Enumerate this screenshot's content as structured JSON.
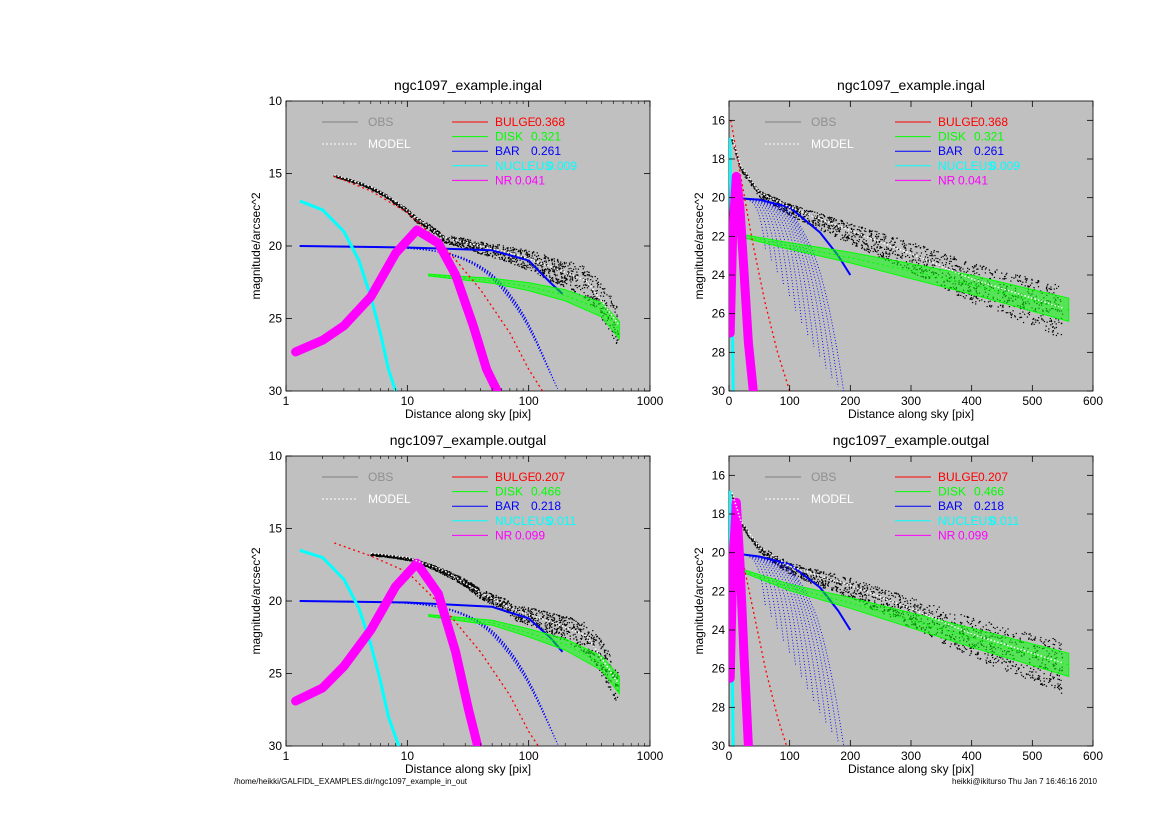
{
  "footer": {
    "path": "/home/heikki/GALFIDL_EXAMPLES.dir/ngc1097_example_in_out",
    "stamp": "heikki@ikiturso  Thu Jan  7 16:46:16 2010"
  },
  "colors": {
    "panel_bg": "#c0c0c0",
    "obs": "#000000",
    "model": "#ffffff",
    "bulge": "#ff0000",
    "disk": "#00ff00",
    "bar": "#0000ff",
    "nucleus": "#00ffff",
    "nr": "#ff00ff"
  },
  "chart_data": [
    {
      "type": "scatter",
      "title": "ngc1097_example.ingal",
      "xlabel": "Distance along sky [pix]",
      "ylabel": "magnitude/arcsec^2",
      "xscale": "log",
      "xlim": [
        1,
        1000
      ],
      "ylim": [
        30,
        10
      ],
      "xticks": [
        "1",
        "10",
        "100",
        "1000"
      ],
      "yticks": [
        "10",
        "15",
        "20",
        "25",
        "30"
      ],
      "legend_left": [
        "OBS",
        "MODEL"
      ],
      "legend_right": [
        {
          "name": "BULGE",
          "value": "0.368",
          "color": "#ff0000"
        },
        {
          "name": "DISK",
          "value": "0.321",
          "color": "#00ff00"
        },
        {
          "name": "BAR",
          "value": "0.261",
          "color": "#0000ff"
        },
        {
          "name": "NUCLEUS",
          "value": "0.009",
          "color": "#00ffff"
        },
        {
          "name": "NR",
          "value": "0.041",
          "color": "#ff00ff"
        }
      ],
      "components": {
        "nucleus": {
          "x": [
            1.3,
            2,
            3,
            4,
            5,
            6,
            7,
            8
          ],
          "y": [
            16.9,
            17.5,
            19.0,
            21.0,
            23.5,
            26.0,
            28.5,
            30.0
          ]
        },
        "nr": {
          "x": [
            1.2,
            2,
            3,
            5,
            8,
            12,
            18,
            25,
            35,
            45,
            55
          ],
          "y": [
            27.3,
            26.5,
            25.5,
            23.5,
            20.5,
            18.9,
            19.8,
            22.0,
            25.5,
            28.5,
            30.0
          ]
        },
        "bulge": {
          "x": [
            2.5,
            5,
            10,
            20,
            40,
            70,
            100,
            130
          ],
          "y": [
            15.2,
            16.2,
            17.7,
            20.0,
            23.0,
            26.0,
            28.5,
            30.0
          ]
        },
        "bar": {
          "x": [
            1.3,
            10,
            50,
            100,
            150,
            190
          ],
          "y": [
            20.0,
            20.1,
            20.3,
            21.0,
            22.5,
            23.3
          ]
        },
        "disk": {
          "x": [
            15,
            50,
            100,
            200,
            400,
            560
          ],
          "y": [
            22.0,
            22.4,
            22.8,
            23.4,
            24.4,
            25.8
          ]
        },
        "obs": {
          "x": [
            2.5,
            5,
            8,
            12,
            20,
            40,
            80,
            150,
            300,
            550
          ],
          "y": [
            15.2,
            16.0,
            17.0,
            18.2,
            19.5,
            20.1,
            20.7,
            21.5,
            22.5,
            25.5
          ]
        }
      }
    },
    {
      "type": "scatter",
      "title": "ngc1097_example.ingal",
      "xlabel": "Distance along sky [pix]",
      "ylabel": "magnitude/arcsec^2",
      "xscale": "linear",
      "xlim": [
        0,
        600
      ],
      "ylim": [
        30,
        15
      ],
      "xticks": [
        "0",
        "100",
        "200",
        "300",
        "400",
        "500",
        "600"
      ],
      "yticks": [
        "16",
        "18",
        "20",
        "22",
        "24",
        "26",
        "28",
        "30"
      ],
      "legend_left": [
        "OBS",
        "MODEL"
      ],
      "legend_right": [
        {
          "name": "BULGE",
          "value": "0.368",
          "color": "#ff0000"
        },
        {
          "name": "DISK",
          "value": "0.321",
          "color": "#00ff00"
        },
        {
          "name": "BAR",
          "value": "0.261",
          "color": "#0000ff"
        },
        {
          "name": "NUCLEUS",
          "value": "0.009",
          "color": "#00ffff"
        },
        {
          "name": "NR",
          "value": "0.041",
          "color": "#ff00ff"
        }
      ],
      "components": {
        "nucleus": {
          "x": [
            1,
            3,
            5,
            7
          ],
          "y": [
            16.9,
            20.0,
            25.0,
            30.0
          ]
        },
        "nr": {
          "x": [
            2,
            6,
            12,
            18,
            25,
            32,
            40
          ],
          "y": [
            27.0,
            22.0,
            18.9,
            20.5,
            24.0,
            27.5,
            30.0
          ]
        },
        "bulge": {
          "x": [
            3,
            20,
            40,
            60,
            80,
            100
          ],
          "y": [
            16.0,
            19.0,
            22.5,
            25.5,
            28.0,
            30.0
          ]
        },
        "bar": {
          "x": [
            0,
            50,
            100,
            150,
            180,
            200
          ],
          "y": [
            20.0,
            20.1,
            20.5,
            21.8,
            23.0,
            24.0
          ]
        },
        "disk": {
          "x": [
            10,
            100,
            200,
            300,
            400,
            560
          ],
          "y": [
            21.9,
            22.5,
            23.1,
            23.8,
            24.5,
            25.8
          ]
        },
        "obs": {
          "x": [
            5,
            20,
            50,
            100,
            200,
            300,
            400,
            550
          ],
          "y": [
            17.0,
            18.5,
            19.8,
            20.6,
            21.8,
            23.0,
            24.3,
            25.8
          ]
        }
      }
    },
    {
      "type": "scatter",
      "title": "ngc1097_example.outgal",
      "xlabel": "Distance along sky [pix]",
      "ylabel": "magnitude/arcsec^2",
      "xscale": "log",
      "xlim": [
        1,
        1000
      ],
      "ylim": [
        30,
        10
      ],
      "xticks": [
        "1",
        "10",
        "100",
        "1000"
      ],
      "yticks": [
        "10",
        "15",
        "20",
        "25",
        "30"
      ],
      "legend_left": [
        "OBS",
        "MODEL"
      ],
      "legend_right": [
        {
          "name": "BULGE",
          "value": "0.207",
          "color": "#ff0000"
        },
        {
          "name": "DISK",
          "value": "0.466",
          "color": "#00ff00"
        },
        {
          "name": "BAR",
          "value": "0.218",
          "color": "#0000ff"
        },
        {
          "name": "NUCLEUS",
          "value": "0.011",
          "color": "#00ffff"
        },
        {
          "name": "NR",
          "value": "0.099",
          "color": "#ff00ff"
        }
      ],
      "components": {
        "nucleus": {
          "x": [
            1.3,
            2,
            3,
            4,
            5,
            6,
            7,
            8.5
          ],
          "y": [
            16.5,
            17.0,
            18.5,
            20.5,
            23.0,
            25.5,
            28.0,
            30.0
          ]
        },
        "nr": {
          "x": [
            1.2,
            2,
            3,
            5,
            8,
            12,
            18,
            25,
            32,
            38
          ],
          "y": [
            26.9,
            26.0,
            24.5,
            22.0,
            19.0,
            17.4,
            19.5,
            23.5,
            27.5,
            30.0
          ]
        },
        "bulge": {
          "x": [
            2.5,
            5,
            10,
            20,
            40,
            70,
            100,
            120
          ],
          "y": [
            16.0,
            16.9,
            18.0,
            20.5,
            23.5,
            26.5,
            29.0,
            30.0
          ]
        },
        "bar": {
          "x": [
            1.3,
            10,
            50,
            100,
            150,
            190
          ],
          "y": [
            20.0,
            20.1,
            20.4,
            21.2,
            22.5,
            23.5
          ]
        },
        "disk": {
          "x": [
            15,
            50,
            100,
            200,
            400,
            560
          ],
          "y": [
            21.0,
            21.5,
            22.2,
            23.0,
            24.3,
            25.8
          ]
        },
        "obs": {
          "x": [
            5,
            10,
            20,
            40,
            80,
            150,
            300,
            550
          ],
          "y": [
            16.8,
            17.1,
            18.0,
            19.5,
            20.8,
            21.5,
            22.5,
            25.8
          ]
        }
      }
    },
    {
      "type": "scatter",
      "title": "ngc1097_example.outgal",
      "xlabel": "Distance along sky [pix]",
      "ylabel": "magnitude/arcsec^2",
      "xscale": "linear",
      "xlim": [
        0,
        600
      ],
      "ylim": [
        30,
        15
      ],
      "xticks": [
        "0",
        "100",
        "200",
        "300",
        "400",
        "500",
        "600"
      ],
      "yticks": [
        "16",
        "18",
        "20",
        "22",
        "24",
        "26",
        "28",
        "30"
      ],
      "legend_left": [
        "OBS",
        "MODEL"
      ],
      "legend_right": [
        {
          "name": "BULGE",
          "value": "0.207",
          "color": "#ff0000"
        },
        {
          "name": "DISK",
          "value": "0.466",
          "color": "#00ff00"
        },
        {
          "name": "BAR",
          "value": "0.218",
          "color": "#0000ff"
        },
        {
          "name": "NUCLEUS",
          "value": "0.011",
          "color": "#00ffff"
        },
        {
          "name": "NR",
          "value": "0.099",
          "color": "#ff00ff"
        }
      ],
      "components": {
        "nucleus": {
          "x": [
            1,
            3,
            5,
            7
          ],
          "y": [
            16.8,
            20.0,
            25.0,
            30.0
          ]
        },
        "nr": {
          "x": [
            2,
            6,
            12,
            18,
            25,
            32
          ],
          "y": [
            26.5,
            21.0,
            17.4,
            20.5,
            25.5,
            30.0
          ]
        },
        "bulge": {
          "x": [
            3,
            20,
            40,
            60,
            80,
            95
          ],
          "y": [
            17.5,
            20.0,
            23.0,
            26.0,
            28.5,
            30.0
          ]
        },
        "bar": {
          "x": [
            0,
            50,
            100,
            150,
            180,
            200
          ],
          "y": [
            20.0,
            20.2,
            20.6,
            21.8,
            23.0,
            24.0
          ]
        },
        "disk": {
          "x": [
            10,
            100,
            200,
            300,
            400,
            560
          ],
          "y": [
            20.8,
            21.8,
            22.6,
            23.5,
            24.4,
            25.8
          ]
        },
        "obs": {
          "x": [
            5,
            20,
            50,
            100,
            200,
            300,
            400,
            550
          ],
          "y": [
            17.0,
            18.5,
            19.8,
            20.8,
            21.8,
            23.0,
            24.3,
            25.8
          ]
        }
      }
    }
  ]
}
